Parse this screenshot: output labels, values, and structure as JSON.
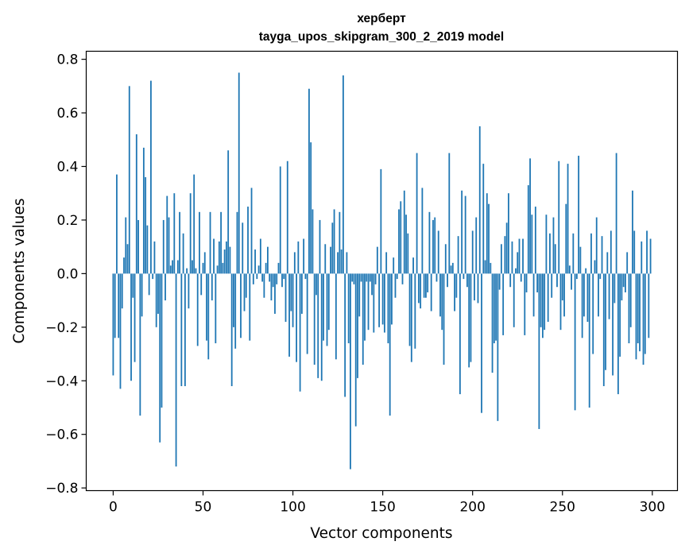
{
  "chart_data": {
    "type": "bar",
    "title": "херберт",
    "subtitle": "tayga_upos_skipgram_300_2_2019 model",
    "xlabel": "Vector components",
    "ylabel": "Components values",
    "xlim": [
      -15,
      314
    ],
    "ylim": [
      -0.81,
      0.83
    ],
    "xticks": [
      0,
      50,
      100,
      150,
      200,
      250,
      300
    ],
    "yticks": [
      -0.8,
      -0.6,
      -0.4,
      -0.2,
      0.0,
      0.2,
      0.4,
      0.6,
      0.8
    ],
    "xtick_labels": [
      "0",
      "50",
      "100",
      "150",
      "200",
      "250",
      "300"
    ],
    "ytick_labels": [
      "−0.8",
      "−0.6",
      "−0.4",
      "−0.2",
      "0.0",
      "0.2",
      "0.4",
      "0.6",
      "0.8"
    ],
    "grid": false,
    "bar_color": "#1f77b4",
    "series": [
      {
        "values": [
          -0.38,
          -0.24,
          0.37,
          -0.24,
          -0.43,
          -0.13,
          0.06,
          0.21,
          0.11,
          0.7,
          -0.4,
          -0.09,
          -0.33,
          0.52,
          0.2,
          -0.53,
          -0.16,
          0.47,
          0.36,
          0.18,
          -0.08,
          0.72,
          -0.02,
          0.12,
          -0.2,
          -0.15,
          -0.63,
          -0.5,
          0.2,
          -0.1,
          0.29,
          0.21,
          0.03,
          0.05,
          0.3,
          -0.72,
          0.05,
          0.23,
          -0.42,
          0.15,
          -0.42,
          0.02,
          -0.13,
          0.3,
          0.05,
          0.37,
          0.02,
          -0.27,
          0.23,
          -0.08,
          0.04,
          0.08,
          -0.25,
          -0.32,
          0.23,
          -0.1,
          0.13,
          -0.26,
          0.03,
          0.12,
          0.23,
          0.04,
          0.09,
          0.12,
          0.46,
          0.1,
          -0.42,
          -0.2,
          -0.28,
          0.23,
          0.75,
          -0.24,
          0.19,
          -0.14,
          -0.09,
          0.25,
          -0.25,
          0.32,
          -0.04,
          0.09,
          -0.02,
          0.03,
          0.13,
          -0.03,
          -0.09,
          0.04,
          0.1,
          -0.03,
          -0.1,
          -0.05,
          -0.15,
          -0.04,
          0.04,
          0.4,
          -0.05,
          -0.02,
          -0.18,
          0.42,
          -0.31,
          -0.14,
          -0.2,
          0.08,
          -0.33,
          0.12,
          -0.44,
          -0.15,
          0.13,
          -0.02,
          -0.3,
          0.69,
          0.49,
          0.24,
          -0.34,
          -0.08,
          -0.39,
          0.2,
          -0.4,
          -0.25,
          0.11,
          -0.27,
          -0.21,
          0.1,
          0.19,
          0.24,
          -0.32,
          0.08,
          0.23,
          0.09,
          0.74,
          -0.46,
          0.08,
          -0.26,
          -0.73,
          -0.03,
          -0.04,
          -0.57,
          -0.39,
          -0.16,
          -0.03,
          -0.34,
          -0.25,
          -0.03,
          -0.21,
          -0.03,
          -0.08,
          -0.22,
          -0.04,
          0.1,
          -0.2,
          0.39,
          -0.19,
          -0.22,
          0.08,
          -0.26,
          -0.53,
          -0.19,
          0.06,
          -0.09,
          -0.02,
          0.24,
          0.27,
          -0.04,
          0.31,
          0.22,
          0.15,
          -0.27,
          -0.33,
          0.06,
          -0.28,
          0.45,
          -0.11,
          -0.13,
          0.32,
          -0.09,
          -0.09,
          -0.07,
          0.23,
          -0.14,
          0.2,
          0.21,
          -0.03,
          0.16,
          -0.16,
          -0.21,
          -0.34,
          0.11,
          -0.05,
          0.45,
          0.03,
          0.04,
          -0.14,
          -0.09,
          0.14,
          -0.45,
          0.31,
          -0.02,
          0.29,
          -0.05,
          -0.35,
          -0.33,
          0.16,
          -0.1,
          0.21,
          -0.11,
          0.55,
          -0.52,
          0.41,
          0.05,
          0.3,
          0.26,
          0.04,
          -0.37,
          -0.26,
          -0.25,
          -0.55,
          -0.06,
          0.11,
          -0.23,
          0.14,
          0.19,
          0.3,
          -0.05,
          0.12,
          -0.2,
          0.02,
          0.08,
          0.13,
          -0.03,
          0.13,
          -0.23,
          -0.07,
          0.33,
          0.43,
          0.22,
          -0.16,
          0.25,
          -0.07,
          -0.58,
          -0.2,
          -0.24,
          -0.21,
          0.22,
          -0.18,
          0.15,
          -0.09,
          0.21,
          0.11,
          -0.05,
          0.42,
          -0.21,
          -0.1,
          -0.16,
          0.26,
          0.41,
          0.03,
          -0.06,
          0.15,
          -0.51,
          -0.02,
          0.44,
          0.1,
          -0.24,
          -0.16,
          0.02,
          -0.18,
          -0.5,
          0.15,
          -0.3,
          0.05,
          0.21,
          -0.16,
          -0.02,
          0.14,
          -0.42,
          -0.36,
          0.08,
          -0.17,
          0.16,
          -0.38,
          -0.11,
          0.45,
          -0.45,
          -0.31,
          -0.1,
          -0.05,
          -0.07,
          0.08,
          -0.26,
          -0.2,
          0.31,
          0.16,
          -0.32,
          -0.26,
          -0.29,
          0.12,
          -0.34,
          -0.3,
          0.16,
          -0.24,
          0.13
        ]
      }
    ]
  }
}
